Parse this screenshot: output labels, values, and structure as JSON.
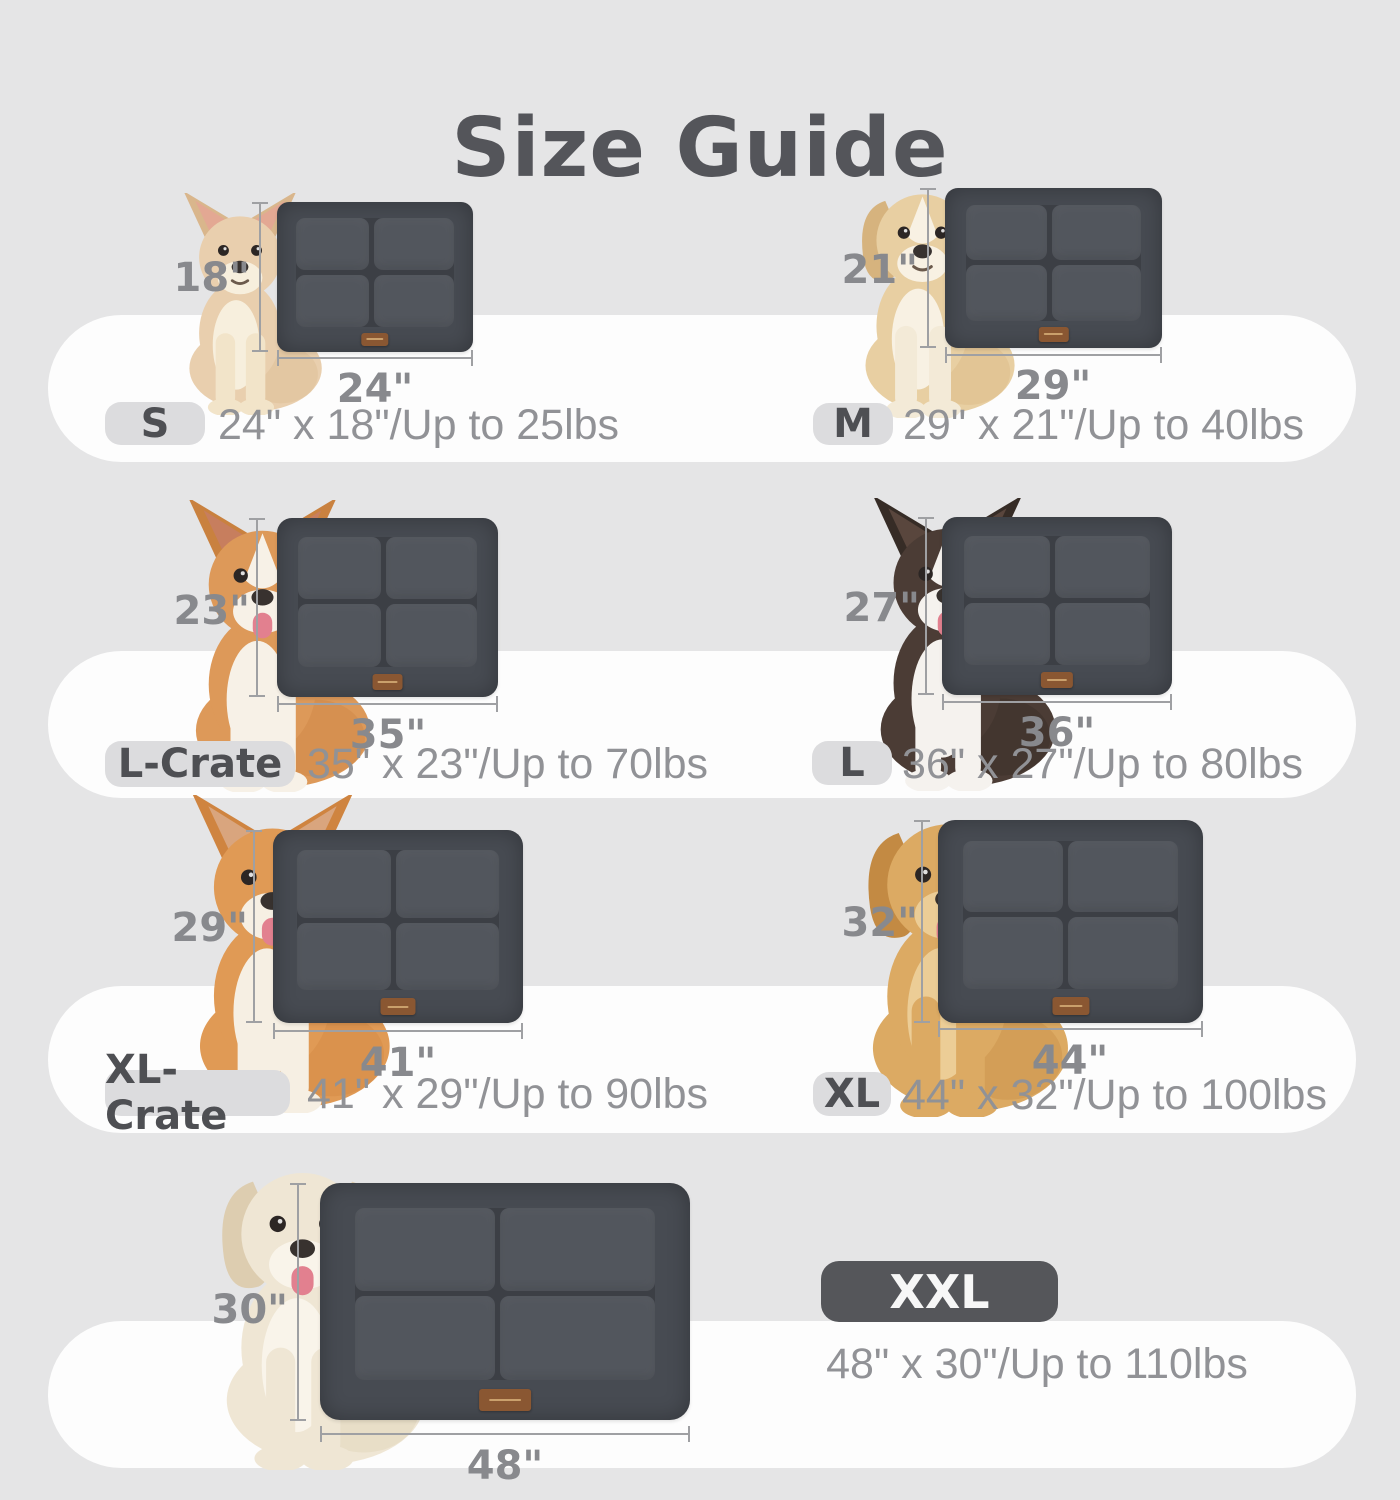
{
  "page": {
    "title": "Size Guide",
    "background": "#e5e5e6",
    "band_color": "#fdfdfd",
    "title_color": "#54555a"
  },
  "colors": {
    "mat_base": "#474b52",
    "mat_panel": "#52565d",
    "mat_seam": "#3c3f45",
    "tag": "#8a5732",
    "tag_thread": "#caa06c",
    "pill_bg": "#dcdcde",
    "pill_text": "#4e4f53",
    "xxl_pill_bg": "#55565a",
    "xxl_pill_text": "#f7f7f7",
    "spec_text": "#919296",
    "dim_text": "#88898d",
    "dim_line": "#9fa0a3"
  },
  "sizes": [
    {
      "id": "s",
      "label": "S",
      "spec": "24\" x 18\"/Up to 25lbs",
      "height": "18\"",
      "width": "24\"",
      "dog": {
        "name": "chihuahua",
        "body": "#e9cfae",
        "shade": "#d9b68c",
        "chest": "#f7efdd",
        "legs": "#f2e4c9",
        "ear_inner": "#e3a893",
        "ears": "up",
        "tongue": false,
        "blaze": false
      }
    },
    {
      "id": "m",
      "label": "M",
      "spec": "29\" x 21\"/Up to 40lbs",
      "height": "21\"",
      "width": "29\"",
      "dog": {
        "name": "havanese-puppy",
        "body": "#e8cfa2",
        "shade": "#d6b37e",
        "chest": "#f8f1e3",
        "legs": "#f3ead7",
        "ear_inner": "#d6b37e",
        "ears": "floppy",
        "tongue": false,
        "blaze": true
      }
    },
    {
      "id": "l-crate",
      "label": "L-Crate",
      "spec": "35\" x 23\"/Up to 70lbs",
      "height": "23\"",
      "width": "35\"",
      "dog": {
        "name": "corgi",
        "body": "#dd9959",
        "shade": "#c9813f",
        "chest": "#f7f1e7",
        "legs": "#f7f1e7",
        "ear_inner": "#c77e5e",
        "ears": "up",
        "tongue": true,
        "blaze": true
      }
    },
    {
      "id": "l",
      "label": "L",
      "spec": "36\" x 27\"/Up to 80lbs",
      "height": "27\"",
      "width": "36\"",
      "dog": {
        "name": "border-collie",
        "body": "#4b3c35",
        "shade": "#362c26",
        "chest": "#f5f2ee",
        "legs": "#f5f2ee",
        "ear_inner": "#59463d",
        "ears": "up",
        "tongue": true,
        "blaze": true
      }
    },
    {
      "id": "xl-crate",
      "label": "XL-Crate",
      "spec": "41\" x 29\"/Up to 90lbs",
      "height": "29\"",
      "width": "41\"",
      "dog": {
        "name": "shiba-inu",
        "body": "#e09a55",
        "shade": "#cf8440",
        "chest": "#f6efe3",
        "legs": "#f6efe3",
        "ear_inner": "#d9a57e",
        "ears": "up",
        "tongue": true,
        "blaze": false
      }
    },
    {
      "id": "xl",
      "label": "XL",
      "spec": "44\" x 32\"/Up to 100lbs",
      "height": "32\"",
      "width": "44\"",
      "dog": {
        "name": "golden-retriever",
        "body": "#dcaa63",
        "shade": "#c38a43",
        "chest": "#eccd96",
        "legs": "#dcaa63",
        "ear_inner": "#c38a43",
        "ears": "floppy",
        "tongue": true,
        "blaze": false
      }
    },
    {
      "id": "xxl",
      "label": "XXL",
      "spec": "48\" x 30\"/Up to 110lbs",
      "height": "30\"",
      "width": "48\"",
      "dog": {
        "name": "cream-retriever",
        "body": "#efe6d4",
        "shade": "#ddcdb0",
        "chest": "#f9f4ea",
        "legs": "#efe6d4",
        "ear_inner": "#ddcdb0",
        "ears": "floppy",
        "tongue": true,
        "blaze": false
      }
    }
  ]
}
